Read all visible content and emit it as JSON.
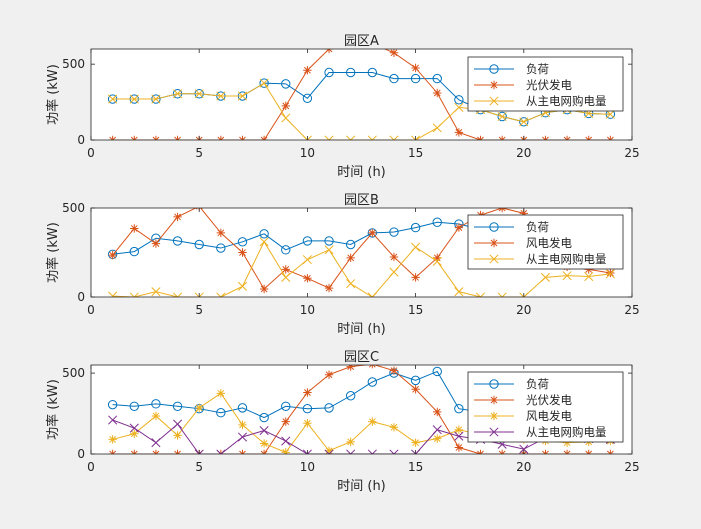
{
  "figure": {
    "background": "#f0f0f0"
  },
  "colors": {
    "load": "#0072bd",
    "pv": "#d95319",
    "wind": "#edb120",
    "grid_purchase": "#7e2f8e",
    "axis": "#262626",
    "plot_bg": "#ffffff"
  },
  "chart_data": [
    {
      "type": "line",
      "title": "园区A",
      "xlabel": "时间 (h)",
      "ylabel": "功率 (kW)",
      "xlim": [
        0,
        25
      ],
      "ylim": [
        0,
        600
      ],
      "xticks": [
        0,
        5,
        10,
        15,
        20,
        25
      ],
      "yticks": [
        0,
        500
      ],
      "grid": false,
      "legend_position": "top-right",
      "x": [
        1,
        2,
        3,
        4,
        5,
        6,
        7,
        8,
        9,
        10,
        11,
        12,
        13,
        14,
        15,
        16,
        17,
        18,
        19,
        20,
        21,
        22,
        23,
        24
      ],
      "series": [
        {
          "name": "负荷",
          "marker": "circle",
          "color_key": "load",
          "values": [
            270,
            270,
            270,
            305,
            305,
            290,
            290,
            375,
            370,
            275,
            445,
            445,
            445,
            405,
            405,
            405,
            265,
            200,
            155,
            120,
            180,
            200,
            175,
            170
          ]
        },
        {
          "name": "光伏发电",
          "marker": "asterisk",
          "color_key": "pv",
          "values": [
            0,
            0,
            0,
            0,
            0,
            0,
            0,
            0,
            225,
            460,
            600,
            650,
            635,
            575,
            475,
            310,
            50,
            0,
            0,
            0,
            0,
            0,
            0,
            0
          ]
        },
        {
          "name": "从主电网购电量",
          "marker": "x",
          "color_key": "wind",
          "values": [
            270,
            270,
            270,
            305,
            305,
            290,
            290,
            375,
            145,
            0,
            0,
            0,
            0,
            0,
            0,
            80,
            215,
            200,
            155,
            120,
            180,
            200,
            175,
            170
          ]
        }
      ]
    },
    {
      "type": "line",
      "title": "园区B",
      "xlabel": "时间 (h)",
      "ylabel": "功率 (kW)",
      "xlim": [
        0,
        25
      ],
      "ylim": [
        0,
        500
      ],
      "xticks": [
        0,
        5,
        10,
        15,
        20,
        25
      ],
      "yticks": [
        0,
        500
      ],
      "grid": false,
      "legend_position": "top-right",
      "x": [
        1,
        2,
        3,
        4,
        5,
        6,
        7,
        8,
        9,
        10,
        11,
        12,
        13,
        14,
        15,
        16,
        17,
        18,
        19,
        20,
        21,
        22,
        23,
        24
      ],
      "series": [
        {
          "name": "负荷",
          "marker": "circle",
          "color_key": "load",
          "values": [
            240,
            255,
            330,
            315,
            295,
            275,
            310,
            355,
            265,
            315,
            315,
            295,
            360,
            365,
            390,
            420,
            410,
            380,
            350,
            330,
            300,
            290,
            270,
            265
          ]
        },
        {
          "name": "风电发电",
          "marker": "asterisk",
          "color_key": "pv",
          "values": [
            235,
            385,
            300,
            450,
            510,
            360,
            250,
            45,
            155,
            105,
            50,
            220,
            360,
            225,
            110,
            220,
            390,
            460,
            500,
            470,
            190,
            170,
            155,
            135
          ]
        },
        {
          "name": "从主电网购电量",
          "marker": "x",
          "color_key": "wind",
          "values": [
            5,
            0,
            30,
            0,
            0,
            0,
            60,
            310,
            110,
            210,
            265,
            75,
            0,
            140,
            280,
            200,
            30,
            0,
            0,
            0,
            110,
            120,
            115,
            130
          ]
        }
      ]
    },
    {
      "type": "line",
      "title": "园区C",
      "xlabel": "时间 (h)",
      "ylabel": "功率 (kW)",
      "xlim": [
        0,
        25
      ],
      "ylim": [
        0,
        550
      ],
      "xticks": [
        0,
        5,
        10,
        15,
        20,
        25
      ],
      "yticks": [
        0,
        500
      ],
      "grid": false,
      "legend_position": "top-right",
      "x": [
        1,
        2,
        3,
        4,
        5,
        6,
        7,
        8,
        9,
        10,
        11,
        12,
        13,
        14,
        15,
        16,
        17,
        18,
        19,
        20,
        21,
        22,
        23,
        24
      ],
      "series": [
        {
          "name": "负荷",
          "marker": "circle",
          "color_key": "load",
          "values": [
            305,
            295,
            310,
            295,
            280,
            255,
            285,
            225,
            295,
            280,
            285,
            360,
            445,
            500,
            455,
            510,
            280,
            260,
            240,
            210,
            230,
            240,
            210,
            205
          ]
        },
        {
          "name": "光伏发电",
          "marker": "asterisk",
          "color_key": "pv",
          "values": [
            0,
            0,
            0,
            0,
            0,
            0,
            0,
            0,
            200,
            380,
            490,
            540,
            555,
            515,
            400,
            260,
            40,
            0,
            0,
            0,
            0,
            0,
            0,
            0
          ]
        },
        {
          "name": "风电发电",
          "marker": "asterisk",
          "color_key": "wind",
          "values": [
            90,
            125,
            235,
            115,
            285,
            375,
            180,
            65,
            10,
            190,
            20,
            75,
            200,
            165,
            70,
            95,
            150,
            120,
            100,
            90,
            80,
            70,
            75,
            80
          ]
        },
        {
          "name": "从主电网购电量",
          "marker": "x",
          "color_key": "grid_purchase",
          "values": [
            210,
            160,
            70,
            185,
            0,
            0,
            105,
            145,
            80,
            0,
            0,
            0,
            0,
            0,
            0,
            150,
            110,
            90,
            60,
            30,
            100,
            120,
            95,
            90
          ]
        }
      ]
    }
  ]
}
